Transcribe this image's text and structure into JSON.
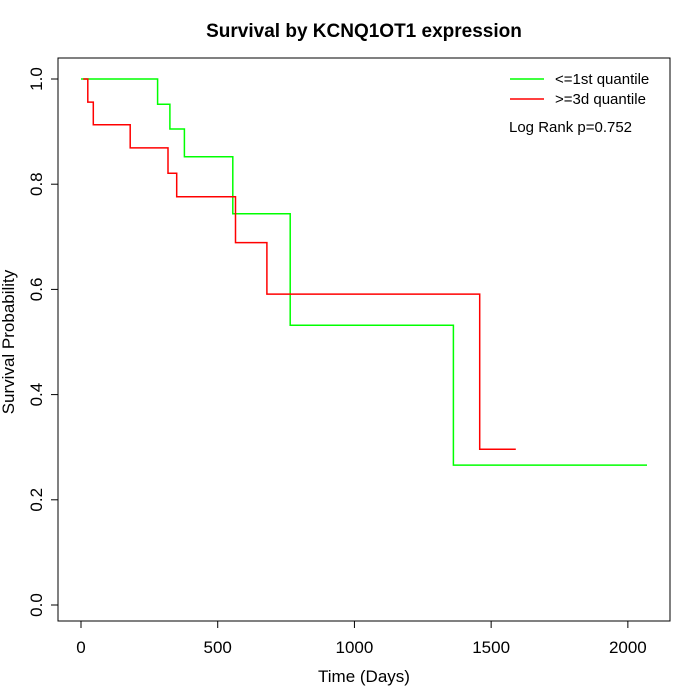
{
  "chart_data": {
    "type": "line",
    "title": "Survival by KCNQ1OT1 expression",
    "xlabel": "Time (Days)",
    "ylabel": "Survival Probability",
    "xlim": [
      0,
      2070
    ],
    "ylim": [
      0,
      1
    ],
    "x_ticks": [
      0,
      500,
      1000,
      1500,
      2000
    ],
    "y_ticks": [
      0.0,
      0.2,
      0.4,
      0.6,
      0.8,
      1.0
    ],
    "x_tick_labels": [
      "0",
      "500",
      "1000",
      "1500",
      "2000"
    ],
    "y_tick_labels": [
      "0.0",
      "0.2",
      "0.4",
      "0.6",
      "0.8",
      "1.0"
    ],
    "grid": false,
    "legend_position": "top-right",
    "series": [
      {
        "name": "<=1st quantile",
        "color": "#00ff00",
        "step_points": [
          [
            0,
            1.0
          ],
          [
            280,
            1.0
          ],
          [
            280,
            0.952
          ],
          [
            325,
            0.952
          ],
          [
            325,
            0.905
          ],
          [
            378,
            0.905
          ],
          [
            378,
            0.852
          ],
          [
            555,
            0.852
          ],
          [
            555,
            0.744
          ],
          [
            765,
            0.744
          ],
          [
            765,
            0.532
          ],
          [
            1362,
            0.532
          ],
          [
            1362,
            0.266
          ],
          [
            2070,
            0.266
          ]
        ]
      },
      {
        "name": ">=3d quantile",
        "color": "#ff0000",
        "step_points": [
          [
            8,
            1.0
          ],
          [
            25,
            1.0
          ],
          [
            25,
            0.956
          ],
          [
            45,
            0.956
          ],
          [
            45,
            0.913
          ],
          [
            180,
            0.913
          ],
          [
            180,
            0.869
          ],
          [
            318,
            0.869
          ],
          [
            318,
            0.821
          ],
          [
            350,
            0.821
          ],
          [
            350,
            0.776
          ],
          [
            565,
            0.776
          ],
          [
            565,
            0.689
          ],
          [
            680,
            0.689
          ],
          [
            680,
            0.591
          ],
          [
            1458,
            0.591
          ],
          [
            1458,
            0.296
          ],
          [
            1590,
            0.296
          ]
        ]
      }
    ],
    "annotations": [
      "Log Rank p=0.752"
    ]
  }
}
